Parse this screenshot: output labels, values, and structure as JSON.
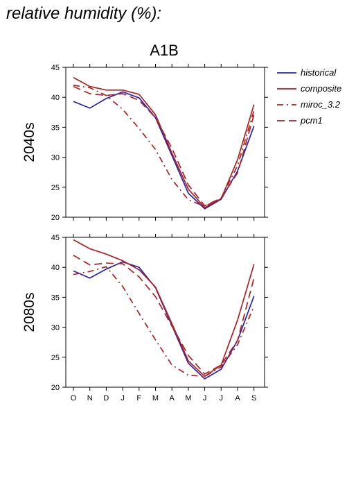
{
  "title": "relative humidity (%):",
  "colors": {
    "historical": "#2424b4",
    "scenario": "#b41e1e",
    "axis": "#000000"
  },
  "chart_data": {
    "type": "line",
    "scenario": "A1B",
    "categories": [
      "O",
      "N",
      "D",
      "J",
      "F",
      "M",
      "A",
      "M",
      "J",
      "J",
      "A",
      "S"
    ],
    "ylim": [
      20,
      45
    ],
    "yticks": [
      20,
      25,
      30,
      35,
      40,
      45
    ],
    "legend": [
      "historical",
      "composite",
      "miroc_3.2",
      "pcm1"
    ],
    "legend_position": "right",
    "grid": false,
    "panels": [
      {
        "label": "2040s",
        "series": [
          {
            "name": "historical",
            "style": "solid",
            "values": [
              39.3,
              38.2,
              39.8,
              40.9,
              39.9,
              36.6,
              30.3,
              24.0,
              21.4,
              23.0,
              27.7,
              35.2
            ]
          },
          {
            "name": "composite",
            "style": "solid",
            "values": [
              43.3,
              41.8,
              41.2,
              41.2,
              40.5,
              37.1,
              30.7,
              24.7,
              21.6,
              23.1,
              29.6,
              38.8
            ]
          },
          {
            "name": "miroc_3.2",
            "style": "dashdot",
            "values": [
              42.0,
              41.6,
              40.3,
              38.0,
              34.8,
              31.3,
              26.3,
              22.9,
              21.8,
              23.2,
              28.6,
              37.8
            ]
          },
          {
            "name": "pcm1",
            "style": "dashed",
            "values": [
              41.8,
              40.6,
              40.3,
              40.6,
              39.5,
              36.6,
              31.5,
              25.4,
              21.9,
              23.2,
              27.4,
              37.1
            ]
          }
        ]
      },
      {
        "label": "2080s",
        "series": [
          {
            "name": "historical",
            "style": "solid",
            "values": [
              39.4,
              38.2,
              39.7,
              40.9,
              40.0,
              36.6,
              30.3,
              24.0,
              21.4,
              23.0,
              27.8,
              35.2
            ]
          },
          {
            "name": "composite",
            "style": "solid",
            "values": [
              44.6,
              43.1,
              42.2,
              41.1,
              39.6,
              36.7,
              30.6,
              24.4,
              21.8,
              23.7,
              31.2,
              40.5
            ]
          },
          {
            "name": "miroc_3.2",
            "style": "dashdot",
            "values": [
              38.8,
              39.3,
              40.1,
              36.8,
              32.3,
              27.9,
              23.7,
              22.0,
              21.8,
              23.4,
              27.1,
              33.5
            ]
          },
          {
            "name": "pcm1",
            "style": "dashed",
            "values": [
              42.0,
              40.4,
              40.7,
              40.6,
              38.4,
              35.1,
              30.2,
              25.3,
              22.2,
              23.7,
              27.8,
              38.2
            ]
          }
        ]
      }
    ]
  }
}
